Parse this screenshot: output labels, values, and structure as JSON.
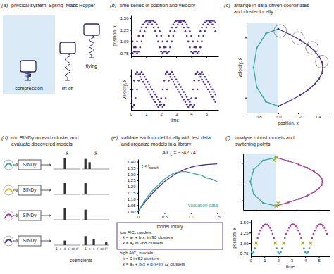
{
  "panels": [
    {
      "label": "(a)",
      "title": [
        "physical system; Spring–Mass Hopper"
      ]
    },
    {
      "label": "(b)",
      "title": [
        "time-series of position and velocity"
      ]
    },
    {
      "label": "(c)",
      "title": [
        "arrange in data-driven coordinates",
        "and cluster locally"
      ]
    },
    {
      "label": "(d)",
      "title": [
        "run SINDy on each cluster and",
        "evaluate discovered models"
      ]
    },
    {
      "label": "(e)",
      "title": [
        "validate each model locally with test data",
        "and organize models in a library"
      ]
    },
    {
      "label": "(f)",
      "title": [
        "analyse robust models and",
        "switching points"
      ]
    }
  ],
  "hopper": {
    "labels": [
      "compression",
      "lift off",
      "flying"
    ]
  },
  "sindy": {
    "headers": [
      "ẋ",
      "ẍ"
    ],
    "terms": [
      "1",
      "x",
      "ẋ",
      "x²",
      "xẋ",
      "ẋ²"
    ],
    "method": "SINDy",
    "xlabel": "coefficients",
    "rows": [
      {
        "color": "#3aa79f",
        "xdot": [
          0,
          0,
          1,
          0,
          0,
          0
        ],
        "xddot": [
          0.9,
          0.6,
          0,
          0,
          0,
          0
        ]
      },
      {
        "color": "#c9b52a",
        "xdot": [
          0,
          0,
          1,
          0,
          0,
          0
        ],
        "xddot": [
          1,
          0,
          0,
          0,
          0,
          0
        ]
      },
      {
        "color": "#a8399a",
        "xdot": [
          0,
          0,
          1,
          0,
          0,
          0
        ],
        "xddot": [
          0.9,
          0,
          0,
          0,
          0,
          0
        ]
      },
      {
        "color": "#4b2d8c",
        "xdot": [
          0,
          0,
          0.4,
          0,
          0,
          0
        ],
        "xddot": [
          0.8,
          0,
          0.5,
          0,
          0,
          0.3
        ]
      }
    ]
  },
  "library": {
    "title": "model library",
    "groups": [
      {
        "heading": {
          "text": "low AIC",
          "sub": "c",
          "after": " models:"
        },
        "models": [
          "ẍ = a₁ + b₁x, in 90 clusters",
          "ẍ = a₂ in 268 clusters"
        ]
      },
      {
        "heading": {
          "text": "high AIC",
          "sub": "c",
          "after": " models:"
        },
        "models": [
          "ẋ = 0 in 52 clusters",
          "ẍ = a₃ + b₃ẋ + d₃ẋ² in 72 clusters"
        ]
      }
    ]
  },
  "chart_data": [
    {
      "type": "scatter",
      "marker": "circle",
      "tick_labels": "y",
      "ylabel": "position, x",
      "x": [
        0,
        0.1,
        0.2,
        0.3,
        0.4,
        0.5,
        0.6,
        0.7,
        0.8,
        0.9,
        1,
        1.1,
        1.2,
        1.3,
        1.4,
        1.5,
        1.6,
        1.7,
        1.8,
        1.9,
        2,
        2.1,
        2.2,
        2.3,
        2.4,
        2.5,
        2.6,
        2.7,
        2.8,
        2.9,
        3,
        3.1,
        3.2,
        3.3,
        3.4,
        3.5,
        3.6,
        3.7,
        3.8,
        3.9,
        4,
        4.1,
        4.2,
        4.3,
        4.4,
        4.5,
        4.6,
        4.7,
        4.8,
        4.9,
        5,
        5.1,
        5.2,
        5.3,
        5.4,
        5.5,
        5.6
      ],
      "series": [
        {
          "color": "#4b2d8c",
          "values": [
            0.783,
            0.75,
            0.783,
            0.875,
            1,
            1.119,
            1.22,
            1.303,
            1.367,
            1.413,
            1.441,
            1.45,
            1.441,
            1.413,
            1.367,
            1.303,
            1.22,
            1.119,
            1,
            0.875,
            0.783,
            0.75,
            0.783,
            0.875,
            1,
            1.119,
            1.22,
            1.303,
            1.367,
            1.413,
            1.441,
            1.45,
            1.441,
            1.413,
            1.367,
            1.303,
            1.22,
            1.119,
            1,
            0.875,
            0.783,
            0.75,
            0.783,
            0.875,
            1,
            1.119,
            1.22,
            1.303,
            1.367,
            1.413,
            1.441,
            1.45,
            1.441,
            1.413,
            1.367,
            1.303,
            1.22
          ]
        },
        {
          "color": "#4b2d8c",
          "values": [
            1.119,
            1,
            0.875,
            0.783,
            0.75,
            0.783,
            0.875,
            1,
            1.119,
            1.22,
            1.303,
            1.367,
            1.413,
            1.441,
            1.45,
            1.441,
            1.413,
            1.367,
            1.303,
            1.22,
            1.119,
            1,
            0.875,
            0.783,
            0.75,
            0.783,
            0.875,
            1,
            1.119,
            1.22,
            1.303,
            1.367,
            1.413,
            1.441,
            1.45,
            1.441,
            1.413,
            1.367,
            1.303,
            1.22,
            1.119,
            1,
            0.875,
            0.783,
            0.75,
            0.783,
            0.875,
            1,
            1.119,
            1.22,
            1.303,
            1.367,
            1.413,
            1.441,
            1.45,
            1.441,
            1.413
          ]
        }
      ],
      "xlim": [
        0,
        5.8
      ],
      "xticks": [
        0,
        1,
        2,
        3,
        4,
        5
      ],
      "ylim": [
        0.68,
        1.56
      ],
      "yticks": [
        0.75,
        {
          "value": 1,
          "label": "1.00"
        },
        1.25,
        {
          "value": 1.5,
          "label": "1.50"
        }
      ]
    },
    {
      "type": "scatter",
      "marker": "circle",
      "tick_labels": "x",
      "xlabel": "time",
      "ylabel": "velocity, ẋ",
      "x": [
        0,
        0.1,
        0.2,
        0.3,
        0.4,
        0.5,
        0.6,
        0.7,
        0.8,
        0.9,
        1,
        1.1,
        1.2,
        1.3,
        1.4,
        1.5,
        1.6,
        1.7,
        1.8,
        1.9,
        2,
        2.1,
        2.2,
        2.3,
        2.4,
        2.5,
        2.6,
        2.7,
        2.8,
        2.9,
        3,
        3.1,
        3.2,
        3.3,
        3.4,
        3.5,
        3.6,
        3.7,
        3.8,
        3.9,
        4,
        4.1,
        4.2,
        4.3,
        4.4,
        4.5,
        4.6,
        4.7,
        4.8,
        4.9,
        5,
        5.1,
        5.2,
        5.3,
        5.4,
        5.5,
        5.6
      ],
      "series": [
        {
          "color": "#4b2d8c",
          "values": [
            -0.654,
            0,
            0.654,
            1.134,
            1.286,
            1.102,
            0.919,
            0.735,
            0.551,
            0.368,
            0.184,
            0,
            -0.184,
            -0.368,
            -0.551,
            -0.735,
            -0.919,
            -1.102,
            -1.286,
            -1.134,
            -0.654,
            0,
            0.654,
            1.134,
            1.286,
            1.102,
            0.919,
            0.735,
            0.551,
            0.368,
            0.184,
            0,
            -0.184,
            -0.368,
            -0.551,
            -0.735,
            -0.919,
            -1.102,
            -1.286,
            -1.134,
            -0.654,
            0,
            0.654,
            1.134,
            1.286,
            1.102,
            0.919,
            0.735,
            0.551,
            0.368,
            0.184,
            0,
            -0.184,
            -0.368,
            -0.551,
            -0.735,
            -0.919
          ]
        },
        {
          "color": "#4b2d8c",
          "values": [
            -1.102,
            -1.286,
            -1.134,
            -0.654,
            0,
            0.654,
            1.134,
            1.286,
            1.102,
            0.919,
            0.735,
            0.551,
            0.368,
            0.184,
            0,
            -0.184,
            -0.368,
            -0.551,
            -0.735,
            -0.919,
            -1.102,
            -1.286,
            -1.134,
            -0.654,
            0,
            0.654,
            1.134,
            1.286,
            1.102,
            0.919,
            0.735,
            0.551,
            0.368,
            0.184,
            0,
            -0.184,
            -0.368,
            -0.551,
            -0.735,
            -0.919,
            -1.102,
            -1.286,
            -1.134,
            -0.654,
            0,
            0.654,
            1.134,
            1.286,
            1.102,
            0.919,
            0.735,
            0.551,
            0.368,
            0.184,
            0,
            -0.184,
            -0.368
          ]
        }
      ],
      "xlim": [
        0,
        5.8
      ],
      "xticks": [
        0,
        1,
        2,
        3,
        4,
        5
      ],
      "ylim": [
        -1.5,
        1.5
      ],
      "yticks": [
        -1,
        0,
        1
      ]
    },
    {
      "type": "line",
      "marker": "circle",
      "tick_labels": "x",
      "xlabel": "position, x",
      "ylabel": "velocity, ẋ",
      "compression_x": 1,
      "series": [
        {
          "color": "#3aa79f",
          "x": [
            1,
            0.875,
            0.783,
            0.75,
            0.783,
            0.875,
            1
          ],
          "values": [
            -1.286,
            -1.134,
            -0.654,
            0,
            0.654,
            1.134,
            1.286
          ]
        },
        {
          "color": "#4b2d8c",
          "x": [
            1,
            1.119,
            1.22,
            1.303,
            1.367,
            1.413,
            1.441,
            1.45,
            1.441,
            1.413,
            1.367,
            1.303,
            1.22,
            1.119,
            1
          ],
          "values": [
            1.286,
            1.102,
            0.919,
            0.735,
            0.551,
            0.368,
            0.184,
            0,
            -0.184,
            -0.368,
            -0.551,
            -0.735,
            -0.919,
            -1.102,
            -1.286
          ]
        }
      ],
      "clusters": [
        {
          "x": 1.02,
          "y": 1.22
        },
        {
          "x": 1.2,
          "y": 0.98
        },
        {
          "x": 1.34,
          "y": 0.66
        },
        {
          "x": 1.44,
          "y": 0.2
        }
      ],
      "xlim": [
        0.68,
        1.52
      ],
      "xticks": [
        0.8,
        {
          "value": 1,
          "label": "1.0"
        },
        1.2,
        1.4
      ],
      "ylim": [
        -1.5,
        1.5
      ],
      "yticks": [
        -1,
        0,
        1
      ]
    },
    {
      "type": "line",
      "title_parts": {
        "text": "AIC",
        "sub": "c",
        "after": " = −342.74"
      },
      "annotations": [
        {
          "text": "t < t",
          "sub": "switch"
        },
        {
          "text": "validation data"
        }
      ],
      "x": [
        0,
        0.1,
        0.2,
        0.3,
        0.4,
        0.5,
        0.6,
        0.7,
        0.8,
        0.9,
        1,
        1.1,
        1.2,
        1.3,
        1.4,
        1.5
      ],
      "series": [
        {
          "color": "#4b2d8c",
          "values": [
            1,
            1.06,
            1.11,
            1.16,
            1.2,
            1.24,
            1.27,
            1.3,
            1.32,
            1.34,
            1.355,
            1.365,
            1.372,
            1.377,
            1.38,
            1.382
          ]
        },
        {
          "color": "#3aa79f",
          "values": [
            1,
            1.07,
            1.13,
            1.18,
            1.22,
            1.26,
            1.29,
            1.31,
            1.32,
            1.32,
            1.31,
            1.3,
            1.29,
            1.27,
            1.26,
            1.24
          ]
        }
      ],
      "xlim": [
        0,
        1.55
      ],
      "xticks": [
        0,
        0.5,
        {
          "value": 1,
          "label": "1.0"
        },
        1.5
      ],
      "ylim": [
        0.99,
        1.42
      ],
      "yticks": [
        {
          "value": 1,
          "label": "1.00"
        },
        1.05,
        {
          "value": 1.1,
          "label": "1.10"
        },
        1.15,
        {
          "value": 1.2,
          "label": "1.20"
        },
        1.25,
        {
          "value": 1.3,
          "label": "1.30"
        },
        1.35,
        {
          "value": 1.4,
          "label": "1.40"
        }
      ]
    },
    {
      "type": "line",
      "marker": "circle",
      "tick_labels": false,
      "compression_x": 1,
      "series": [
        {
          "color": "#3aa79f",
          "x": [
            1,
            0.875,
            0.783,
            0.75,
            0.783,
            0.875,
            1
          ],
          "values": [
            -1.286,
            -1.134,
            -0.654,
            0,
            0.654,
            1.134,
            1.286
          ]
        },
        {
          "color": "#a8399a",
          "x": [
            1,
            1.119,
            1.22,
            1.303,
            1.367,
            1.413,
            1.441,
            1.45,
            1.441,
            1.413,
            1.367,
            1.303,
            1.22,
            1.119,
            1
          ],
          "values": [
            1.286,
            1.102,
            0.919,
            0.735,
            0.551,
            0.368,
            0.184,
            0,
            -0.184,
            -0.368,
            -0.551,
            -0.735,
            -0.919,
            -1.102,
            -1.286
          ]
        },
        {
          "color": "#9cb526",
          "type": "scatter",
          "marker": "cross",
          "x": [
            1,
            1,
            0.98,
            1.02
          ],
          "values": [
            1.286,
            -1.286,
            1.15,
            -1.15
          ]
        }
      ],
      "xlim": [
        0.68,
        1.52
      ],
      "xticks": [
        0.8,
        1,
        1.2,
        1.4
      ],
      "ylim": [
        -1.5,
        1.5
      ],
      "yticks": [
        -1,
        0,
        1
      ]
    },
    {
      "type": "scatter",
      "marker": "circle",
      "xlabel": "time",
      "ylabel": "position, x",
      "x": [
        0,
        0.1,
        0.2,
        0.3,
        0.4,
        0.5,
        0.6,
        0.7,
        0.8,
        0.9,
        1,
        1.1,
        1.2,
        1.3,
        1.4,
        1.5,
        1.6,
        1.7,
        1.8,
        1.9,
        2,
        2.1,
        2.2,
        2.3,
        2.4,
        2.5,
        2.6,
        2.7,
        2.8,
        2.9,
        3,
        3.1,
        3.2,
        3.3,
        3.4,
        3.5,
        3.6,
        3.7,
        3.8,
        3.9,
        4,
        4.1,
        4.2,
        4.3,
        4.4,
        4.5,
        4.6,
        4.7,
        4.8,
        4.9,
        5,
        5.1,
        5.2,
        5.3,
        5.4,
        5.5,
        5.6
      ],
      "series": [
        {
          "color": "#a8399a",
          "values": [
            null,
            null,
            null,
            null,
            1,
            1.119,
            1.22,
            1.303,
            1.367,
            1.413,
            1.441,
            1.45,
            1.441,
            1.413,
            1.367,
            1.303,
            1.22,
            1.119,
            1,
            null,
            null,
            null,
            null,
            null,
            1,
            1.119,
            1.22,
            1.303,
            1.367,
            1.413,
            1.441,
            1.45,
            1.441,
            1.413,
            1.367,
            1.303,
            1.22,
            1.119,
            1,
            null,
            null,
            null,
            null,
            null,
            1,
            1.119,
            1.22,
            1.303,
            1.367,
            1.413,
            1.441,
            1.45,
            1.441,
            1.413,
            1.367,
            1.303,
            1.22
          ]
        },
        {
          "color": "#3aa79f",
          "values": [
            0.783,
            0.75,
            0.783,
            0.875,
            1,
            null,
            null,
            null,
            null,
            null,
            null,
            null,
            null,
            null,
            null,
            null,
            null,
            null,
            1,
            0.875,
            0.783,
            0.75,
            0.783,
            0.875,
            1,
            null,
            null,
            null,
            null,
            null,
            null,
            null,
            null,
            null,
            null,
            null,
            null,
            null,
            1,
            0.875,
            0.783,
            0.75,
            0.783,
            0.875,
            1,
            null,
            null,
            null,
            null,
            null,
            null,
            null,
            null,
            null,
            null,
            null,
            null
          ]
        },
        {
          "color": "#9cb526",
          "marker": "cross",
          "x": [
            0.4,
            1.8,
            2.4,
            3.8,
            4.4
          ],
          "values": [
            1,
            1,
            1,
            1,
            1
          ]
        }
      ],
      "xlim": [
        0,
        5.8
      ],
      "xticks": [
        0,
        1,
        2,
        3,
        4,
        5
      ],
      "ylim": [
        0.68,
        1.56
      ],
      "yticks": [
        0.75,
        {
          "value": 1,
          "label": "1.00"
        },
        1.25,
        {
          "value": 1.5,
          "label": "1.50"
        }
      ]
    }
  ]
}
